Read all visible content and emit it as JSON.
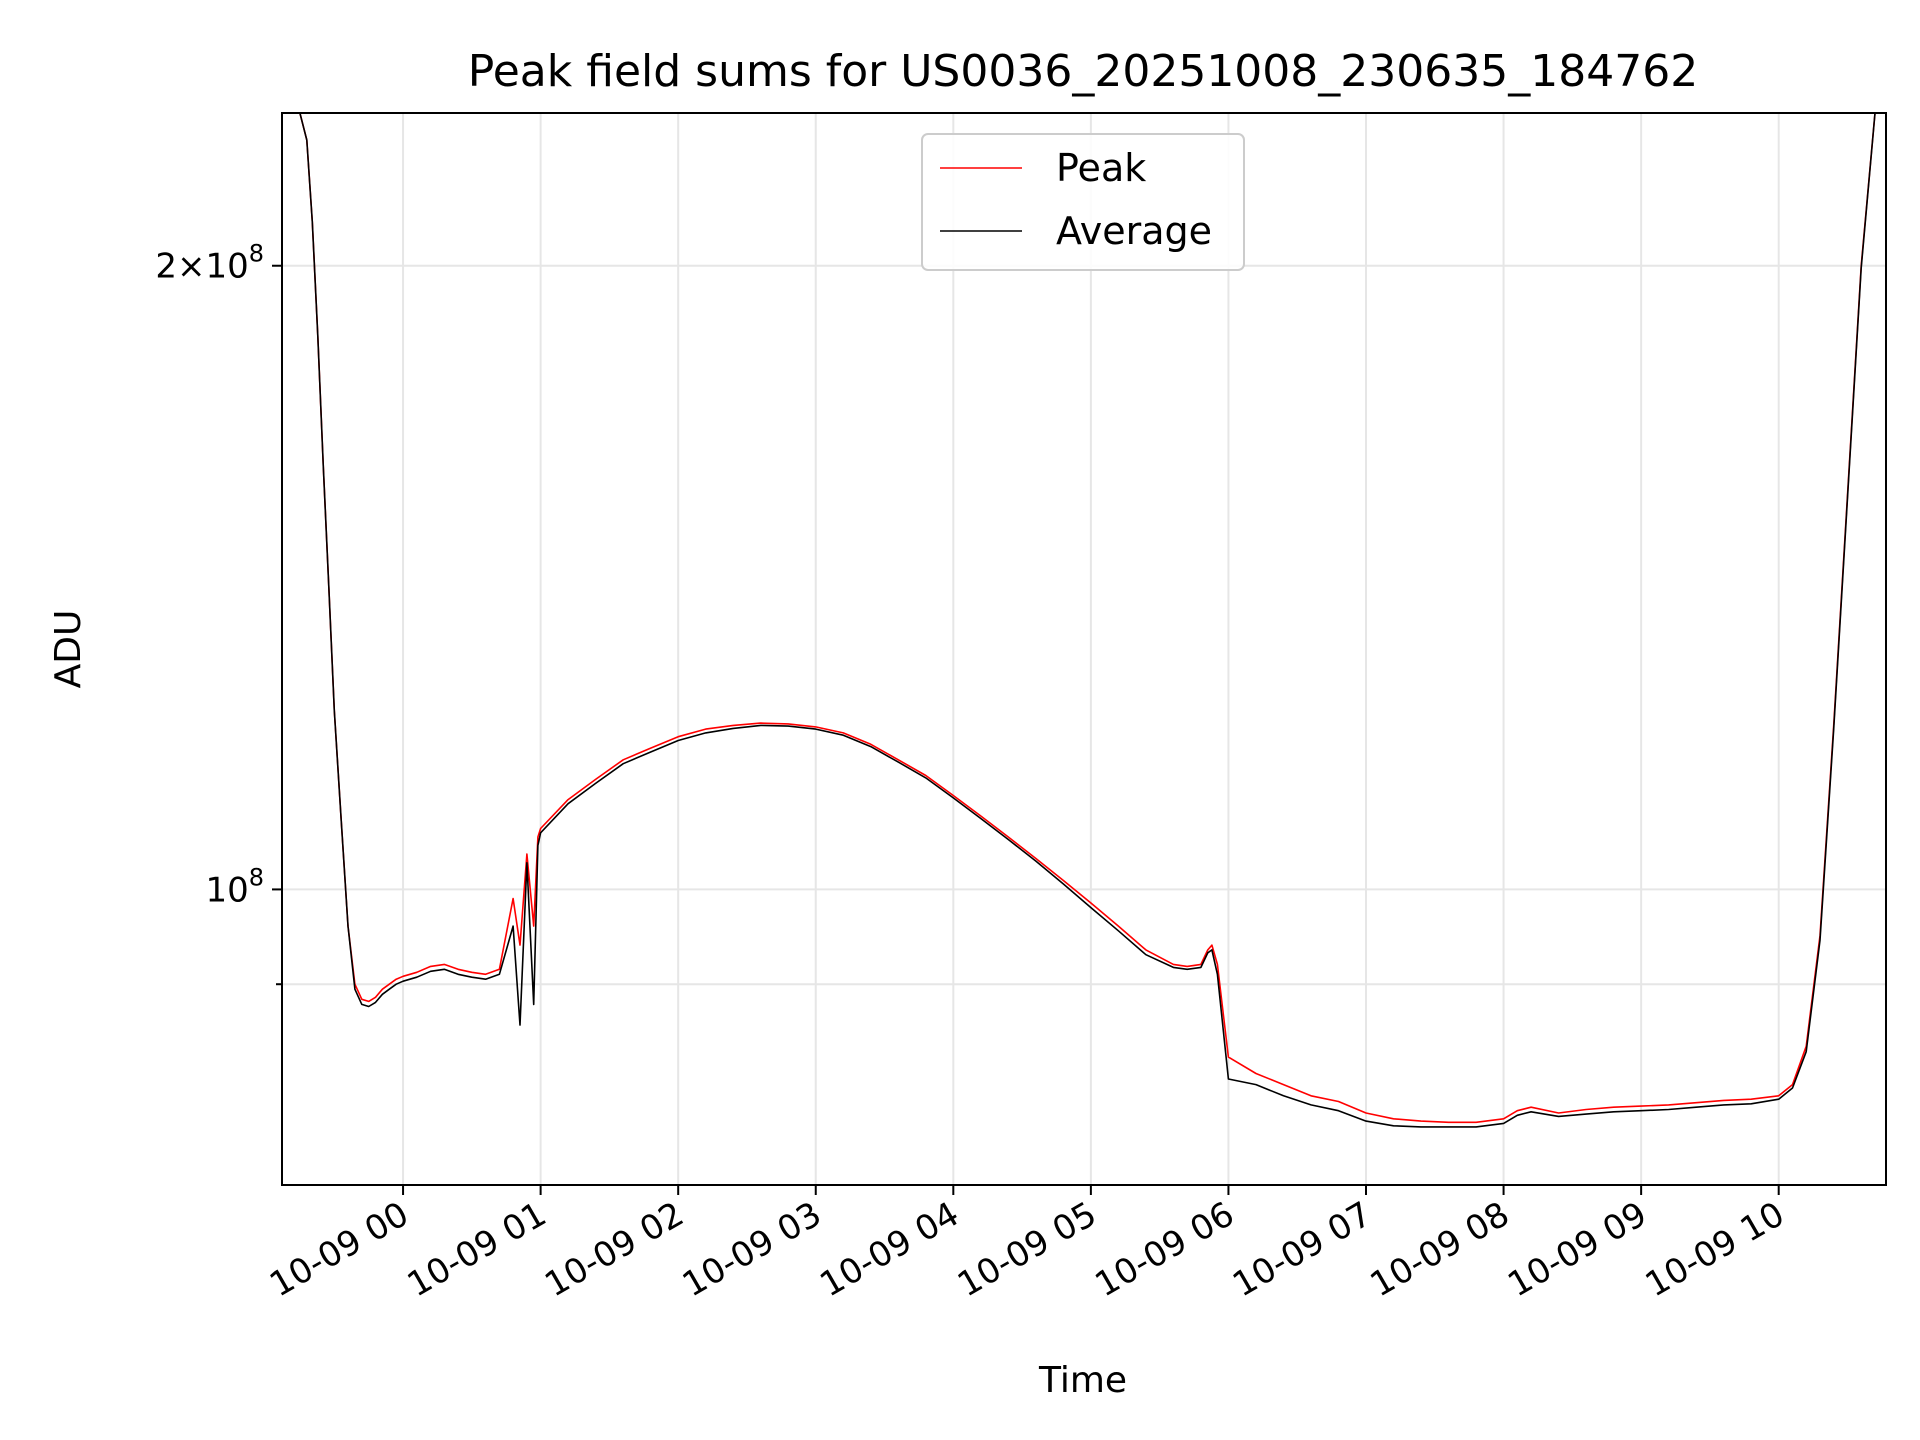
{
  "chart_data": {
    "type": "line",
    "title": "Peak field sums for US0036_20251008_230635_184762",
    "xlabel": "Time",
    "ylabel": "ADU",
    "x_ticks": [
      "10-09 00",
      "10-09 01",
      "10-09 02",
      "10-09 03",
      "10-09 04",
      "10-09 05",
      "10-09 06",
      "10-09 07",
      "10-09 08",
      "10-09 09",
      "10-09 10"
    ],
    "x_tick_hours": [
      0,
      1,
      2,
      3,
      4,
      5,
      6,
      7,
      8,
      9,
      10
    ],
    "xlim_hours": [
      -0.88,
      10.78
    ],
    "y_scale": "log",
    "ylim": [
      72000000,
      237000000
    ],
    "y_ticks": [
      {
        "value": 100000000,
        "label_base": "10",
        "label_exp": "8"
      },
      {
        "value": 200000000,
        "label_base": "2×10",
        "label_exp": "8"
      }
    ],
    "y_minor_ticks": [
      90000000
    ],
    "grid": true,
    "legend_position": "upper-center",
    "series": [
      {
        "name": "Peak",
        "color": "#ff0000",
        "x_hours": [
          -0.88,
          -0.75,
          -0.7,
          -0.66,
          -0.62,
          -0.58,
          -0.54,
          -0.5,
          -0.45,
          -0.4,
          -0.35,
          -0.3,
          -0.25,
          -0.2,
          -0.15,
          -0.1,
          -0.05,
          0.0,
          0.1,
          0.2,
          0.3,
          0.4,
          0.5,
          0.6,
          0.7,
          0.8,
          0.85,
          0.9,
          0.95,
          0.98,
          1.0,
          1.2,
          1.4,
          1.6,
          1.8,
          2.0,
          2.2,
          2.4,
          2.6,
          2.8,
          3.0,
          3.2,
          3.4,
          3.6,
          3.8,
          4.0,
          4.2,
          4.4,
          4.6,
          4.8,
          5.0,
          5.2,
          5.4,
          5.6,
          5.7,
          5.8,
          5.85,
          5.88,
          5.92,
          6.0,
          6.2,
          6.4,
          6.6,
          6.8,
          7.0,
          7.2,
          7.4,
          7.6,
          7.8,
          8.0,
          8.1,
          8.2,
          8.4,
          8.6,
          8.8,
          9.0,
          9.2,
          9.4,
          9.6,
          9.8,
          10.0,
          10.1,
          10.2,
          10.3,
          10.4,
          10.5,
          10.6,
          10.7,
          10.78
        ],
        "values": [
          237000000,
          237000000,
          230000000,
          210000000,
          185000000,
          160000000,
          140000000,
          122000000,
          108000000,
          96000000,
          90000000,
          88500000,
          88300000,
          88700000,
          89500000,
          90000000,
          90500000,
          90800000,
          91200000,
          91800000,
          92000000,
          91500000,
          91200000,
          91000000,
          91500000,
          99000000,
          94000000,
          104000000,
          96000000,
          106000000,
          107000000,
          110500000,
          113000000,
          115500000,
          117000000,
          118500000,
          119500000,
          120000000,
          120300000,
          120200000,
          119800000,
          119000000,
          117500000,
          115500000,
          113500000,
          111000000,
          108500000,
          106000000,
          103500000,
          101000000,
          98500000,
          96000000,
          93500000,
          92000000,
          91800000,
          92000000,
          93500000,
          94000000,
          92000000,
          83000000,
          81500000,
          80500000,
          79500000,
          79000000,
          78000000,
          77500000,
          77300000,
          77200000,
          77200000,
          77500000,
          78200000,
          78500000,
          78000000,
          78300000,
          78500000,
          78600000,
          78700000,
          78900000,
          79100000,
          79200000,
          79500000,
          80500000,
          84000000,
          95000000,
          120000000,
          155000000,
          200000000,
          237000000,
          237000000
        ]
      },
      {
        "name": "Average",
        "color": "#000000",
        "x_hours": [
          -0.88,
          -0.75,
          -0.7,
          -0.66,
          -0.62,
          -0.58,
          -0.54,
          -0.5,
          -0.45,
          -0.4,
          -0.35,
          -0.3,
          -0.25,
          -0.2,
          -0.15,
          -0.1,
          -0.05,
          0.0,
          0.1,
          0.2,
          0.3,
          0.4,
          0.5,
          0.6,
          0.7,
          0.8,
          0.85,
          0.9,
          0.95,
          0.98,
          1.0,
          1.2,
          1.4,
          1.6,
          1.8,
          2.0,
          2.2,
          2.4,
          2.6,
          2.8,
          3.0,
          3.2,
          3.4,
          3.6,
          3.8,
          4.0,
          4.2,
          4.4,
          4.6,
          4.8,
          5.0,
          5.2,
          5.4,
          5.6,
          5.7,
          5.8,
          5.85,
          5.88,
          5.92,
          6.0,
          6.2,
          6.4,
          6.6,
          6.8,
          7.0,
          7.2,
          7.4,
          7.6,
          7.8,
          8.0,
          8.1,
          8.2,
          8.4,
          8.6,
          8.8,
          9.0,
          9.2,
          9.4,
          9.6,
          9.8,
          10.0,
          10.1,
          10.2,
          10.3,
          10.4,
          10.5,
          10.6,
          10.7,
          10.78
        ],
        "values": [
          237000000,
          237000000,
          230000000,
          210000000,
          185000000,
          160000000,
          140000000,
          122000000,
          108000000,
          96000000,
          89500000,
          88000000,
          87800000,
          88200000,
          89000000,
          89500000,
          90000000,
          90300000,
          90700000,
          91300000,
          91500000,
          91000000,
          90700000,
          90500000,
          91000000,
          96000000,
          86000000,
          103000000,
          88000000,
          105000000,
          106500000,
          110000000,
          112500000,
          115000000,
          116500000,
          118000000,
          119000000,
          119600000,
          120000000,
          119900000,
          119500000,
          118700000,
          117200000,
          115200000,
          113200000,
          110700000,
          108200000,
          105700000,
          103200000,
          100600000,
          98000000,
          95500000,
          93000000,
          91700000,
          91500000,
          91700000,
          93200000,
          93500000,
          91000000,
          81000000,
          80500000,
          79500000,
          78700000,
          78200000,
          77300000,
          76900000,
          76800000,
          76800000,
          76800000,
          77100000,
          77800000,
          78100000,
          77700000,
          77900000,
          78100000,
          78200000,
          78300000,
          78500000,
          78700000,
          78800000,
          79200000,
          80200000,
          83500000,
          94500000,
          119500000,
          154500000,
          199500000,
          237000000,
          237000000
        ]
      }
    ]
  }
}
